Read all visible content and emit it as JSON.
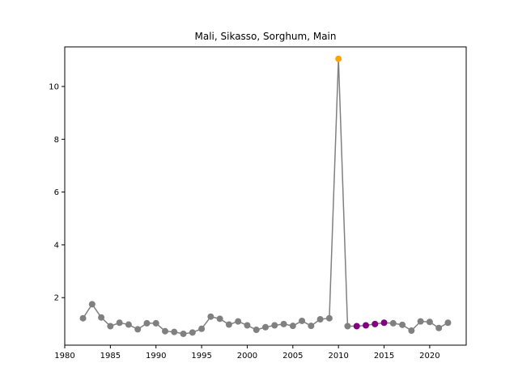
{
  "chart_data": {
    "type": "line",
    "title": "Mali, Sikasso, Sorghum, Main",
    "xlabel": "",
    "ylabel": "",
    "xlim": [
      1980,
      2024
    ],
    "ylim": [
      0.2,
      11.5
    ],
    "xticks": [
      1980,
      1985,
      1990,
      1995,
      2000,
      2005,
      2010,
      2015,
      2020
    ],
    "yticks": [
      2,
      4,
      6,
      8,
      10
    ],
    "grid": false,
    "colors": {
      "line": "#808080",
      "default_marker": "#808080",
      "highlight_marker": "#ffa500",
      "purple_marker": "#800080"
    },
    "series": [
      {
        "x": [
          1982,
          1983,
          1984,
          1985,
          1986,
          1987,
          1988,
          1989,
          1990,
          1991,
          1992,
          1993,
          1994,
          1995,
          1996,
          1997,
          1998,
          1999,
          2000,
          2001,
          2002,
          2003,
          2004,
          2005,
          2006,
          2007,
          2008,
          2009,
          2010,
          2011,
          2012,
          2013,
          2014,
          2015,
          2016,
          2017,
          2018,
          2019,
          2020,
          2021,
          2022
        ],
        "y": [
          1.22,
          1.75,
          1.25,
          0.92,
          1.05,
          0.98,
          0.8,
          1.03,
          1.03,
          0.73,
          0.7,
          0.63,
          0.68,
          0.82,
          1.28,
          1.2,
          0.98,
          1.1,
          0.95,
          0.78,
          0.88,
          0.95,
          1.0,
          0.93,
          1.12,
          0.93,
          1.18,
          1.22,
          11.05,
          0.92,
          0.92,
          0.95,
          1.0,
          1.05,
          1.03,
          0.97,
          0.75,
          1.1,
          1.08,
          0.85,
          1.05
        ],
        "marker_colors": [
          "gray",
          "gray",
          "gray",
          "gray",
          "gray",
          "gray",
          "gray",
          "gray",
          "gray",
          "gray",
          "gray",
          "gray",
          "gray",
          "gray",
          "gray",
          "gray",
          "gray",
          "gray",
          "gray",
          "gray",
          "gray",
          "gray",
          "gray",
          "gray",
          "gray",
          "gray",
          "gray",
          "gray",
          "orange",
          "gray",
          "purple",
          "purple",
          "purple",
          "purple",
          "gray",
          "gray",
          "gray",
          "gray",
          "gray",
          "gray",
          "gray"
        ]
      }
    ]
  }
}
